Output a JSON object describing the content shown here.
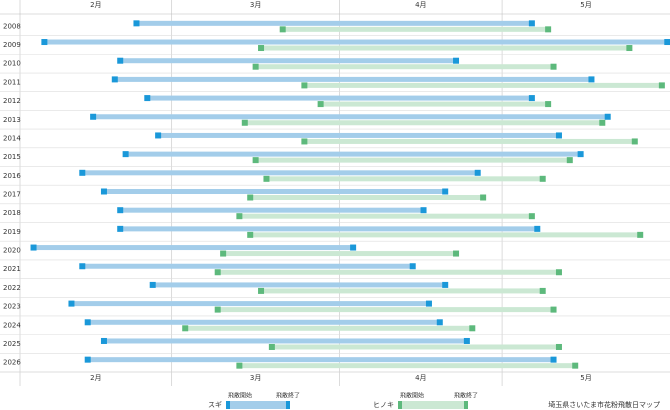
{
  "chart_data": {
    "type": "range",
    "caption": "埼玉県さいたま市花粉飛散日マップ",
    "legend_labels": [
      "飛散開始",
      "飛散終了"
    ],
    "categories": [
      "2008",
      "2009",
      "2010",
      "2011",
      "2012",
      "2013",
      "2014",
      "2015",
      "2016",
      "2017",
      "2018",
      "2019",
      "2020",
      "2021",
      "2022",
      "2023",
      "2024",
      "2025",
      "2026"
    ],
    "xlim": [
      "02-01",
      "05-31"
    ],
    "xticks": [
      {
        "value": "02-01",
        "label": "2月"
      },
      {
        "value": "03-01",
        "label": "3月"
      },
      {
        "value": "04-01",
        "label": "4月"
      },
      {
        "value": "05-01",
        "label": "5月"
      }
    ],
    "grid": true,
    "series": [
      {
        "name": "スギ",
        "color": "#a3cdea",
        "marker_color": "#1a98d9",
        "start": [
          "02-22",
          "02-05",
          "02-19",
          "02-18",
          "02-24",
          "02-14",
          "02-26",
          "02-20",
          "02-12",
          "02-16",
          "02-19",
          "02-19",
          "02-03",
          "02-12",
          "02-25",
          "02-10",
          "02-13",
          "02-16",
          "02-13"
        ],
        "end": [
          "05-06",
          "05-31",
          "04-22",
          "05-17",
          "05-06",
          "05-20",
          "05-11",
          "05-15",
          "04-26",
          "04-20",
          "04-16",
          "05-07",
          "04-03",
          "04-14",
          "04-20",
          "04-17",
          "04-19",
          "04-24",
          "05-10"
        ]
      },
      {
        "name": "ヒノキ",
        "color": "#cbe8d3",
        "marker_color": "#5db97c",
        "start": [
          "03-21",
          "03-17",
          "03-16",
          "03-25",
          "03-28",
          "03-14",
          "03-25",
          "03-16",
          "03-18",
          "03-15",
          "03-13",
          "03-15",
          "03-10",
          "03-09",
          "03-17",
          "03-09",
          "03-03",
          "03-19",
          "03-13"
        ],
        "end": [
          "05-09",
          "05-24",
          "05-10",
          "05-30",
          "05-09",
          "05-19",
          "05-25",
          "05-13",
          "05-08",
          "04-27",
          "05-06",
          "05-26",
          "04-22",
          "05-11",
          "05-08",
          "05-10",
          "04-25",
          "05-11",
          "05-14"
        ]
      }
    ]
  }
}
